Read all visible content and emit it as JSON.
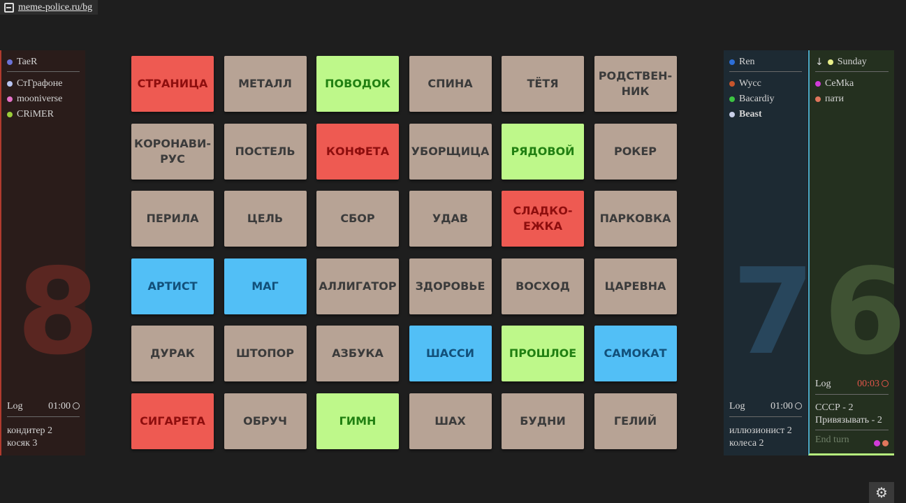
{
  "url": "meme-police.ru/bg",
  "colors": {
    "red": "#ee5a52",
    "blue": "#52bff6",
    "green": "#bef88a",
    "neutral": "#b7a395"
  },
  "teams": {
    "red": {
      "captain": {
        "name": "TaeR",
        "color": "#6b73d6"
      },
      "players": [
        {
          "name": "СтГрафоне",
          "color": "#b9c4f0"
        },
        {
          "name": "mooniverse",
          "color": "#e572c8"
        },
        {
          "name": "CRiMER",
          "color": "#9bcc3a"
        }
      ],
      "score": "8",
      "log_label": "Log",
      "timer": "01:00",
      "clues": [
        "кондитер 2",
        "косяк 3"
      ]
    },
    "blue": {
      "captain": {
        "name": "Ren",
        "color": "#2d6fd8"
      },
      "players": [
        {
          "name": "Wycc",
          "color": "#c7552c"
        },
        {
          "name": "Bacardiy",
          "color": "#3cc442"
        },
        {
          "name": "Beast",
          "color": "#c8cfe8"
        }
      ],
      "score": "7",
      "log_label": "Log",
      "timer": "01:00",
      "clues": [
        "иллюзионист 2",
        "колеса 2"
      ]
    },
    "green": {
      "arrow": "↓",
      "captain": {
        "name": "Sunday",
        "color": "#e9f08a"
      },
      "players": [
        {
          "name": "CeMka",
          "color": "#d13bd8"
        },
        {
          "name": "пати",
          "color": "#e0765c"
        }
      ],
      "score": "6",
      "log_label": "Log",
      "timer": "00:03",
      "clues": [
        "СССР - 2",
        "Привязывать - 2"
      ],
      "end_turn": "End turn"
    }
  },
  "cards": [
    {
      "word": "СТРАНИЦА",
      "color": "red"
    },
    {
      "word": "МЕТАЛЛ",
      "color": "neutral"
    },
    {
      "word": "ПОВОДОК",
      "color": "green"
    },
    {
      "word": "СПИНА",
      "color": "neutral"
    },
    {
      "word": "ТЁТЯ",
      "color": "neutral"
    },
    {
      "word": "РОДСТВЕН-\nНИК",
      "color": "neutral"
    },
    {
      "word": "КОРОНАВИ-\nРУС",
      "color": "neutral"
    },
    {
      "word": "ПОСТЕЛЬ",
      "color": "neutral"
    },
    {
      "word": "КОНФЕТА",
      "color": "red"
    },
    {
      "word": "УБОРЩИЦА",
      "color": "neutral"
    },
    {
      "word": "РЯДОВОЙ",
      "color": "green"
    },
    {
      "word": "РОКЕР",
      "color": "neutral"
    },
    {
      "word": "ПЕРИЛА",
      "color": "neutral"
    },
    {
      "word": "ЦЕЛЬ",
      "color": "neutral"
    },
    {
      "word": "СБОР",
      "color": "neutral"
    },
    {
      "word": "УДАВ",
      "color": "neutral"
    },
    {
      "word": "СЛАДКО-\nЕЖКА",
      "color": "red"
    },
    {
      "word": "ПАРКОВКА",
      "color": "neutral"
    },
    {
      "word": "АРТИСТ",
      "color": "blue"
    },
    {
      "word": "МАГ",
      "color": "blue"
    },
    {
      "word": "АЛЛИГАТОР",
      "color": "neutral"
    },
    {
      "word": "ЗДОРОВЬЕ",
      "color": "neutral"
    },
    {
      "word": "ВОСХОД",
      "color": "neutral"
    },
    {
      "word": "ЦАРЕВНА",
      "color": "neutral"
    },
    {
      "word": "ДУРАК",
      "color": "neutral"
    },
    {
      "word": "ШТОПОР",
      "color": "neutral"
    },
    {
      "word": "АЗБУКА",
      "color": "neutral"
    },
    {
      "word": "ШАССИ",
      "color": "blue"
    },
    {
      "word": "ПРОШЛОЕ",
      "color": "green"
    },
    {
      "word": "САМОКАТ",
      "color": "blue"
    },
    {
      "word": "СИГАРЕТА",
      "color": "red"
    },
    {
      "word": "ОБРУЧ",
      "color": "neutral"
    },
    {
      "word": "ГИМН",
      "color": "green"
    },
    {
      "word": "ШАХ",
      "color": "neutral"
    },
    {
      "word": "БУДНИ",
      "color": "neutral"
    },
    {
      "word": "ГЕЛИЙ",
      "color": "neutral"
    }
  ],
  "settings_icon": "gear-icon"
}
